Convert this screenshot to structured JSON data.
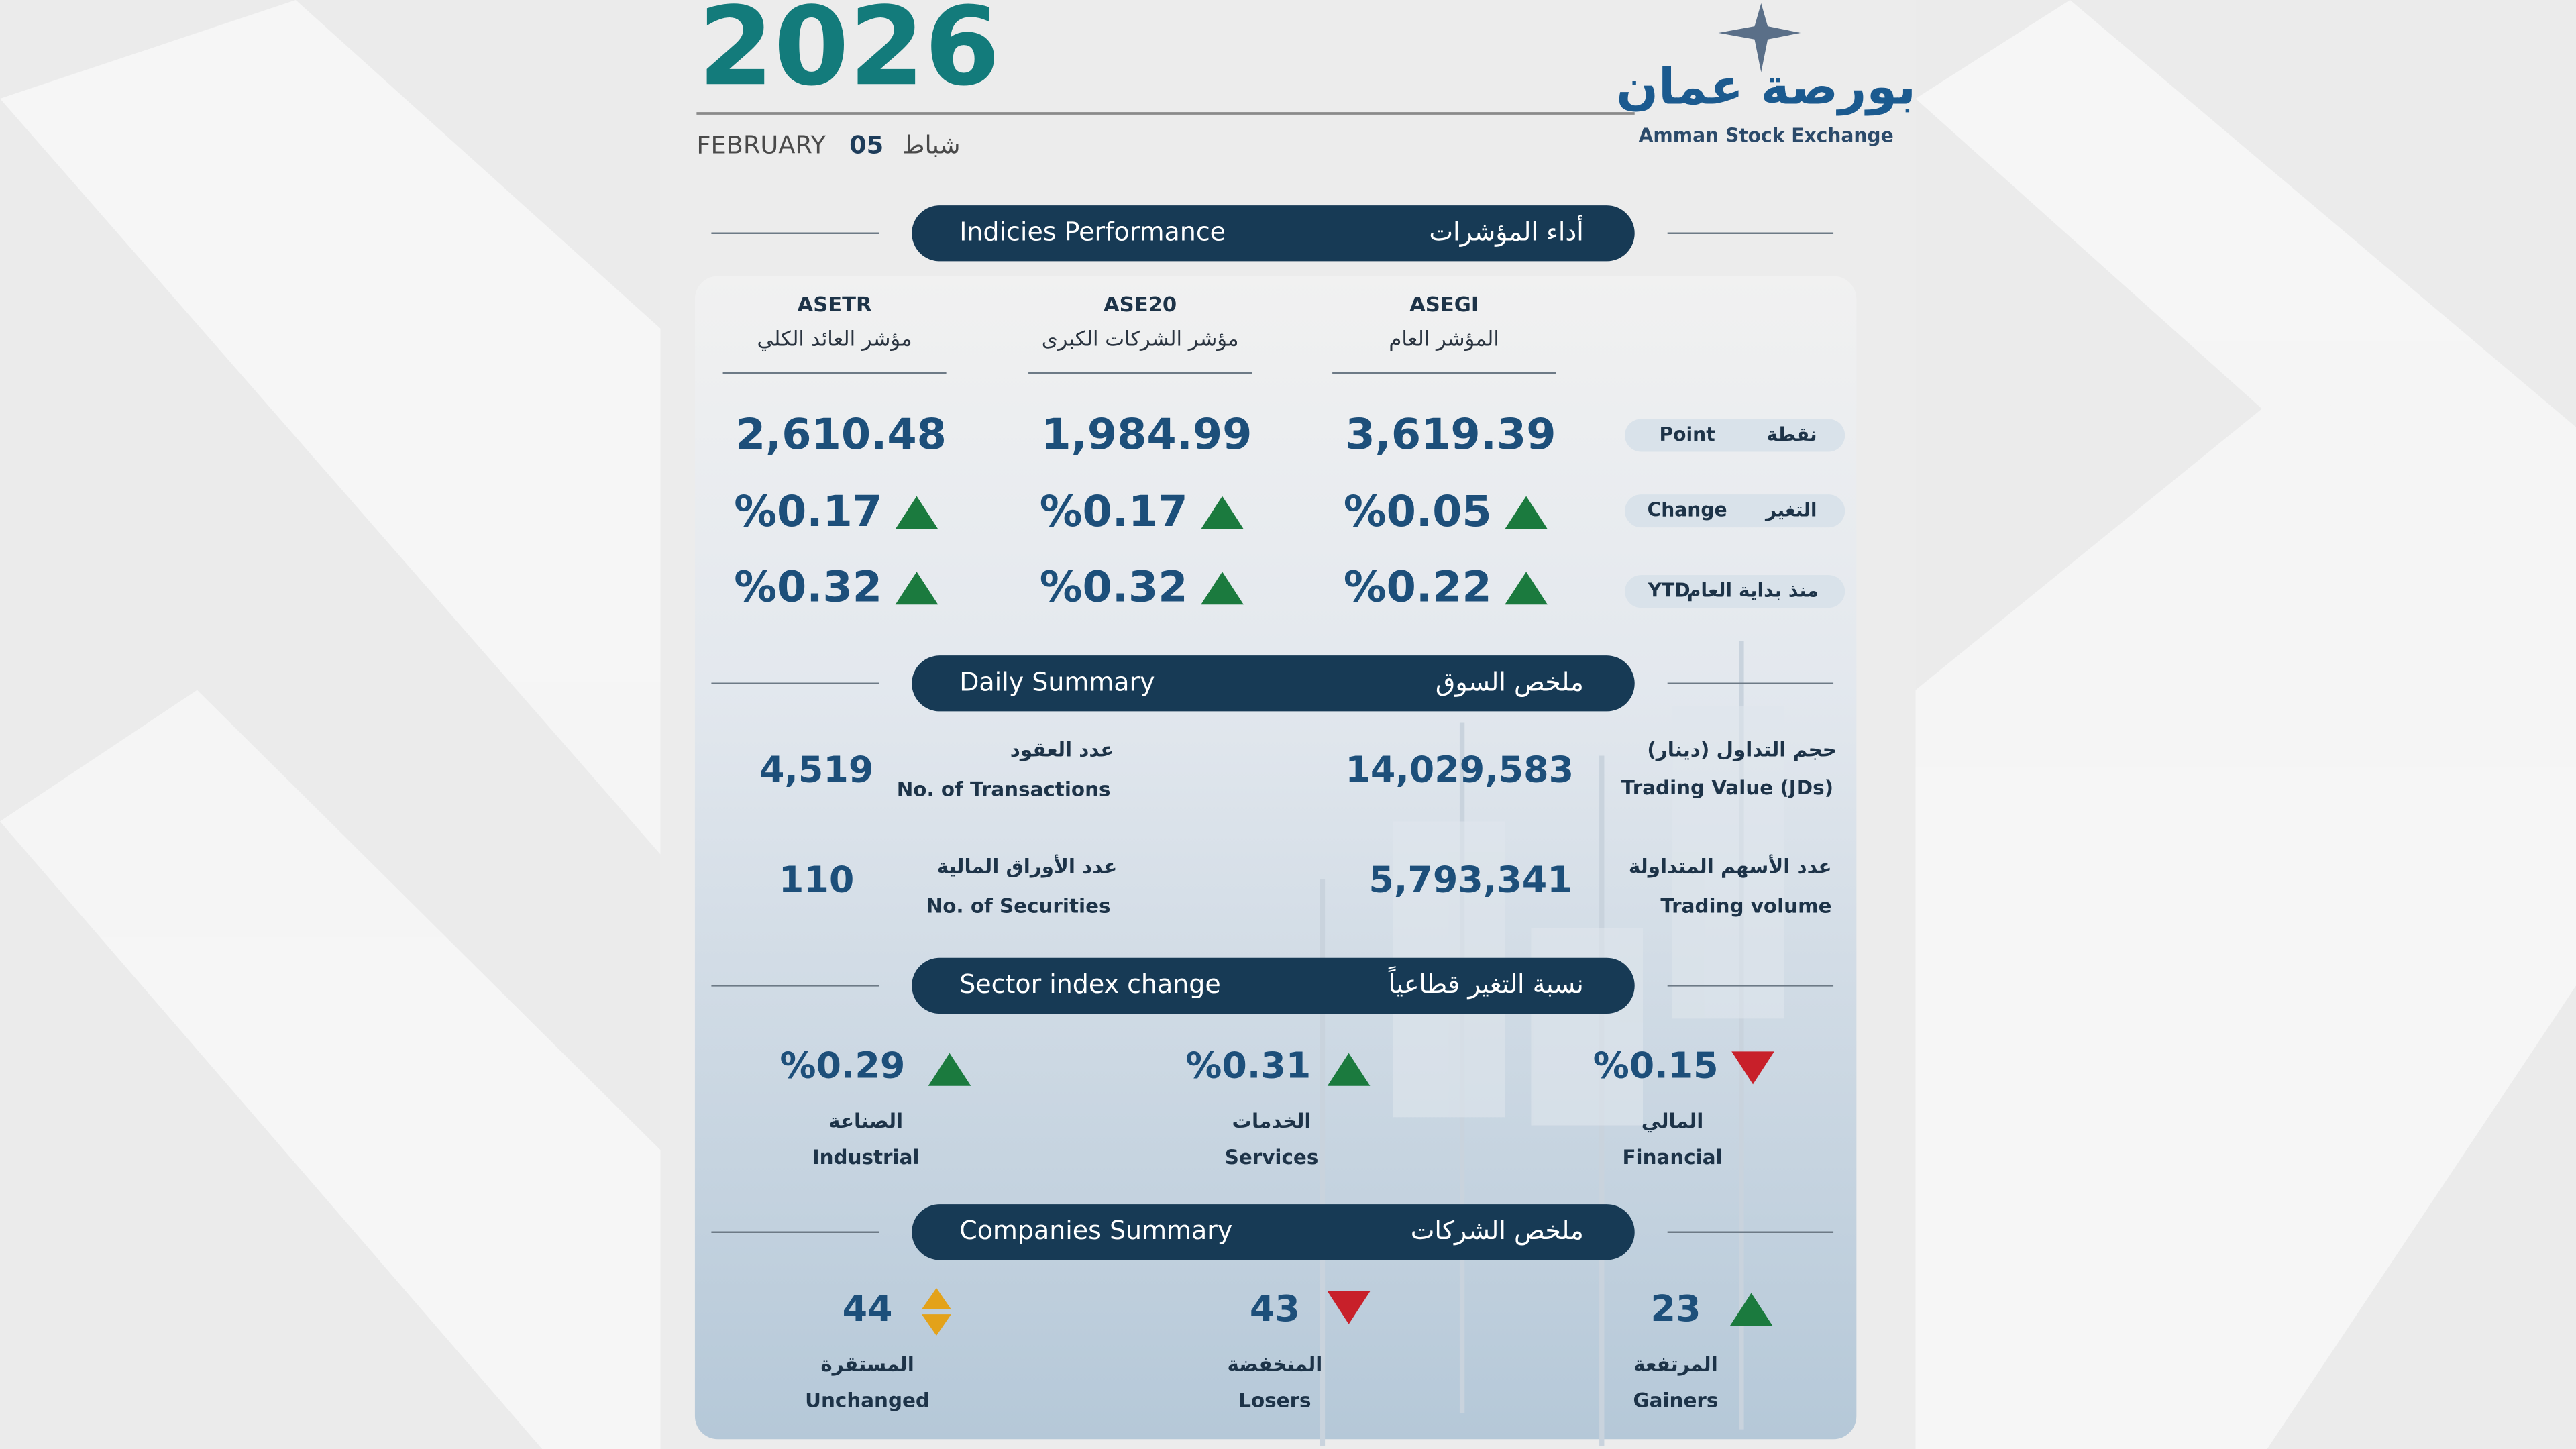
{
  "header": {
    "year": "2026",
    "month_en": "FEBRUARY",
    "day": "05",
    "month_ar": "شباط",
    "logo_ar": "بورصة عمان",
    "logo_en": "Amman Stock Exchange"
  },
  "indices": {
    "title_en": "Indicies Performance",
    "title_ar": "أداء المؤشرات",
    "row_labels": [
      {
        "en": "Point",
        "ar": "نقطة"
      },
      {
        "en": "Change",
        "ar": "التغير"
      },
      {
        "en": "YTD",
        "ar": "منذ بداية العام"
      }
    ],
    "items": [
      {
        "code": "ASEGI",
        "name_ar": "المؤشر العام",
        "point": "3,619.39",
        "change": "%0.05",
        "ytd": "%0.22"
      },
      {
        "code": "ASE20",
        "name_ar": "مؤشر الشركات الكبرى",
        "point": "1,984.99",
        "change": "%0.17",
        "ytd": "%0.32"
      },
      {
        "code": "ASETR",
        "name_ar": "مؤشر العائد الكلي",
        "point": "2,610.48",
        "change": "%0.17",
        "ytd": "%0.32"
      }
    ]
  },
  "daily": {
    "title_en": "Daily Summary",
    "title_ar": "ملخص السوق",
    "items": [
      {
        "ar": "حجم التداول (دينار)",
        "en": "Trading Value (JDs)",
        "value": "14,029,583"
      },
      {
        "ar": "عدد العقود",
        "en": "No. of Transactions",
        "value": "4,519"
      },
      {
        "ar": "عدد الأسهم المتداولة",
        "en": "Trading volume",
        "value": "5,793,341"
      },
      {
        "ar": "عدد الأوراق المالية",
        "en": "No. of Securities",
        "value": "110"
      }
    ]
  },
  "sectors": {
    "title_en": "Sector index change",
    "title_ar": "نسبة التغير قطاعياً",
    "items": [
      {
        "ar": "المالي",
        "en": "Financial",
        "value": "%0.15"
      },
      {
        "ar": "الخدمات",
        "en": "Services",
        "value": "%0.31"
      },
      {
        "ar": "الصناعة",
        "en": "Industrial",
        "value": "%0.29"
      }
    ]
  },
  "companies": {
    "title_en": "Companies Summary",
    "title_ar": "ملخص الشركات",
    "items": [
      {
        "ar": "المرتفعة",
        "en": "Gainers",
        "value": "23"
      },
      {
        "ar": "المنخفضة",
        "en": "Losers",
        "value": "43"
      },
      {
        "ar": "المستقرة",
        "en": "Unchanged",
        "value": "44"
      }
    ]
  }
}
